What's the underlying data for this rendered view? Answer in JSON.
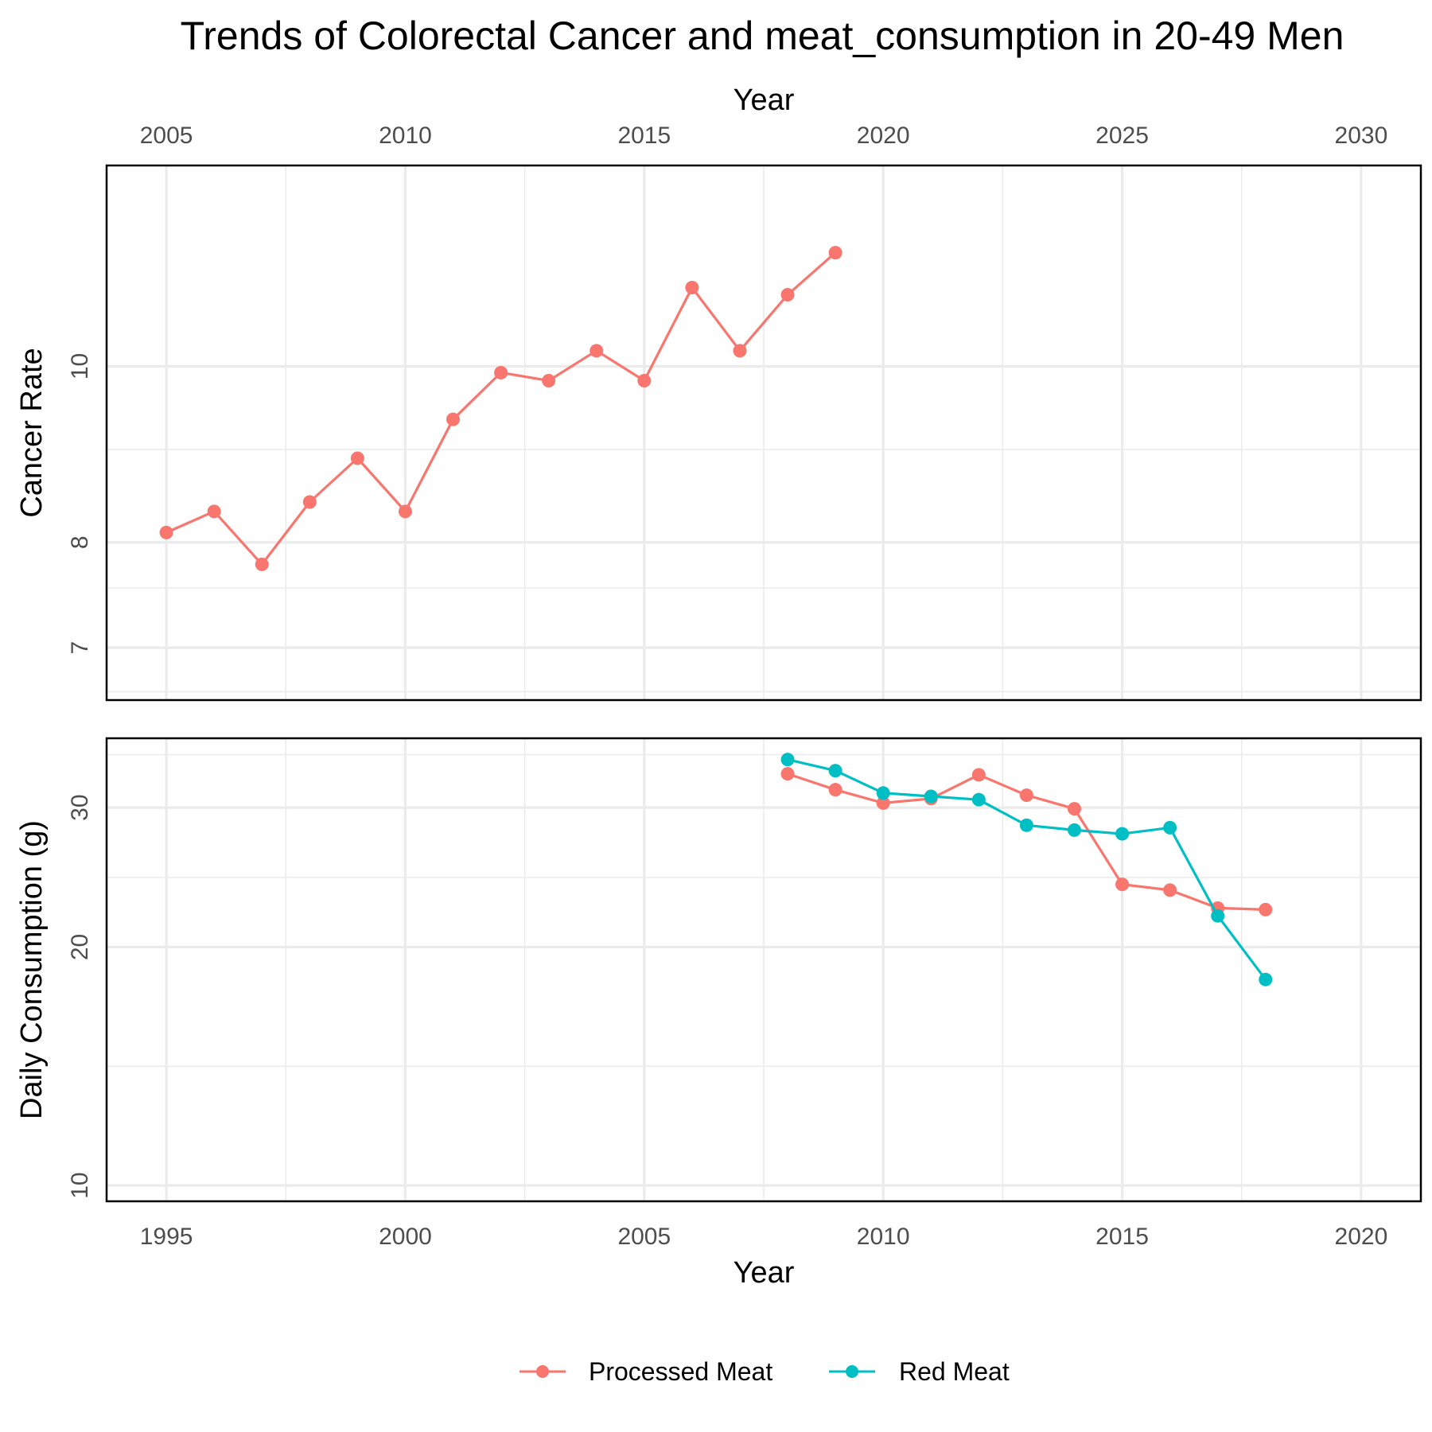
{
  "chart_data": {
    "type": "line",
    "title": "Trends of Colorectal Cancer and meat_consumption in 20-49 Men",
    "legend": {
      "placement": "bottom",
      "entries": [
        {
          "name": "Processed Meat",
          "color": "#F8766D"
        },
        {
          "name": "Red Meat",
          "color": "#00BFC4"
        }
      ]
    },
    "panels": [
      {
        "id": "cancer",
        "xlabel": "Year",
        "xlabel_position": "top",
        "ylabel": "Cancer Rate",
        "xlim": [
          2003.75,
          2031.25
        ],
        "x_ticks": [
          2005,
          2010,
          2015,
          2020,
          2025,
          2030
        ],
        "y_scale": "log",
        "ylim": [
          6.55,
          12.9
        ],
        "y_ticks": [
          7,
          8,
          10
        ],
        "y_minor_ticks": [
          6.62,
          7.55,
          9.0
        ],
        "grid": true,
        "series": [
          {
            "color": "#F8766D",
            "x": [
              2005,
              2006,
              2007,
              2008,
              2009,
              2010,
              2011,
              2012,
              2013,
              2014,
              2015,
              2016,
              2017,
              2018,
              2019
            ],
            "y": [
              8.1,
              8.32,
              7.78,
              8.42,
              8.9,
              8.32,
              9.35,
              9.92,
              9.82,
              10.2,
              9.82,
              11.05,
              10.2,
              10.95,
              11.55
            ]
          }
        ]
      },
      {
        "id": "consumption",
        "xlabel": "Year",
        "xlabel_position": "bottom",
        "ylabel": "Daily Consumption (g)",
        "xlim": [
          1993.75,
          2021.25
        ],
        "x_ticks": [
          1995,
          2000,
          2005,
          2010,
          2015,
          2020
        ],
        "y_scale": "log",
        "ylim": [
          9.55,
          36.7
        ],
        "y_ticks": [
          10,
          20,
          30
        ],
        "y_minor_ticks": [
          14.14,
          24.49,
          35.0
        ],
        "grid": true,
        "series": [
          {
            "name": "Processed Meat",
            "color": "#F8766D",
            "x": [
              2008,
              2009,
              2010,
              2011,
              2012,
              2013,
              2014,
              2015,
              2016,
              2017,
              2018
            ],
            "y": [
              33.1,
              31.6,
              30.4,
              30.8,
              33.0,
              31.1,
              29.9,
              24.0,
              23.6,
              22.4,
              22.3
            ]
          },
          {
            "name": "Red Meat",
            "color": "#00BFC4",
            "x": [
              2008,
              2009,
              2010,
              2011,
              2012,
              2013,
              2014,
              2015,
              2016,
              2017,
              2018
            ],
            "y": [
              34.5,
              33.4,
              31.3,
              31.0,
              30.7,
              28.5,
              28.1,
              27.8,
              28.3,
              21.9,
              18.2
            ]
          }
        ]
      }
    ]
  }
}
